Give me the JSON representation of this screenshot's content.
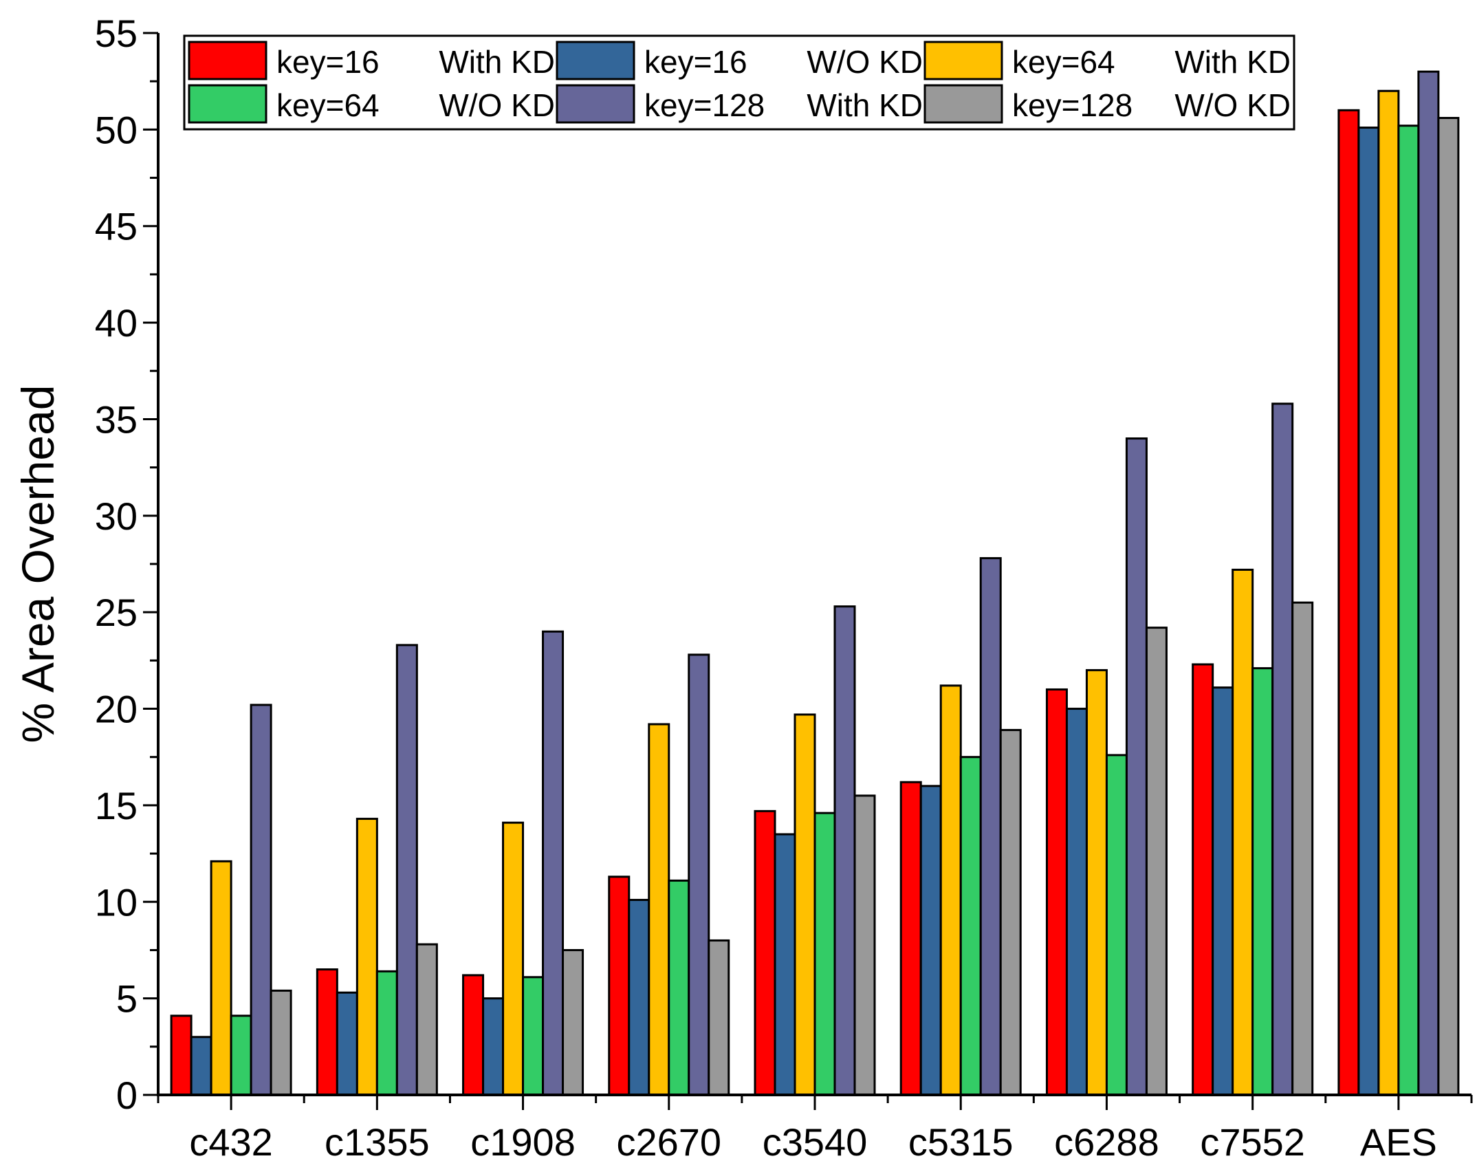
{
  "chart_data": {
    "type": "bar",
    "title": "",
    "xlabel": "",
    "ylabel": "% Area Overhead",
    "ylim": [
      0,
      55
    ],
    "yticks": [
      0,
      5,
      10,
      15,
      20,
      25,
      30,
      35,
      40,
      45,
      50,
      55
    ],
    "grid": false,
    "legend_position": "top",
    "categories": [
      "c432",
      "c1355",
      "c1908",
      "c2670",
      "c3540",
      "c5315",
      "c6288",
      "c7552",
      "AES"
    ],
    "series": [
      {
        "name": "key=16",
        "mode": "With KD",
        "color": "#ff0000",
        "values": [
          4.1,
          6.5,
          6.2,
          11.3,
          14.7,
          16.2,
          21.0,
          22.3,
          51.0
        ]
      },
      {
        "name": "key=16",
        "mode": "W/O KD",
        "color": "#336699",
        "values": [
          3.0,
          5.3,
          5.0,
          10.1,
          13.5,
          16.0,
          20.0,
          21.1,
          50.1
        ]
      },
      {
        "name": "key=64",
        "mode": "With KD",
        "color": "#ffc000",
        "values": [
          12.1,
          14.3,
          14.1,
          19.2,
          19.7,
          21.2,
          22.0,
          27.2,
          52.0
        ]
      },
      {
        "name": "key=64",
        "mode": "W/O KD",
        "color": "#33cc66",
        "values": [
          4.1,
          6.4,
          6.1,
          11.1,
          14.6,
          17.5,
          17.6,
          22.1,
          50.2
        ]
      },
      {
        "name": "key=128",
        "mode": "With KD",
        "color": "#666699",
        "values": [
          20.2,
          23.3,
          24.0,
          22.8,
          25.3,
          27.8,
          34.0,
          35.8,
          53.0
        ]
      },
      {
        "name": "key=128",
        "mode": "W/O KD",
        "color": "#999999",
        "values": [
          5.4,
          7.8,
          7.5,
          8.0,
          15.5,
          18.9,
          24.2,
          25.5,
          50.6
        ]
      }
    ]
  }
}
